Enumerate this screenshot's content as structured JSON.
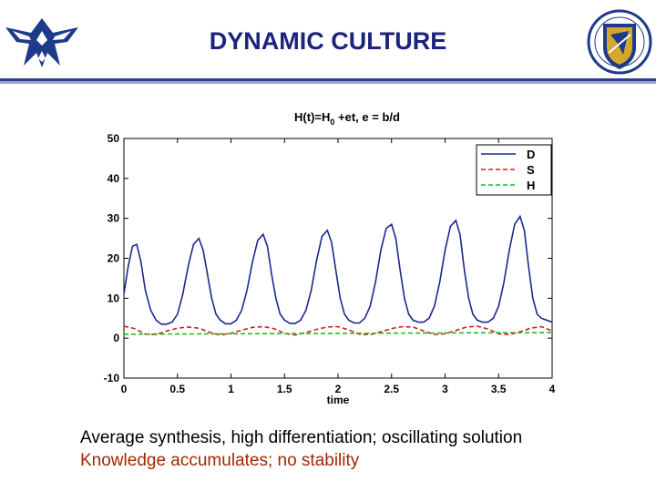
{
  "slide": {
    "title": "DYNAMIC CULTURE",
    "caption_line1": "Average synthesis, high differentiation; oscillating solution",
    "caption_line2": "Knowledge accumulates; no stability",
    "left_logo_icon": "air-force-wings-icon",
    "right_logo_icon": "afrl-shield-emblem-icon",
    "colors": {
      "title": "#1a237e",
      "rule": "#2f3e8f",
      "caption2": "#a02800"
    }
  },
  "chart_data": {
    "type": "line",
    "title": "H(t)=H0 +et, e = b/d",
    "title_main": "H(t)=H",
    "title_sub": "0",
    "title_rest": " +et, e = b/d",
    "xlabel": "time",
    "ylabel": "",
    "xlim": [
      0,
      4
    ],
    "ylim": [
      -10,
      50
    ],
    "xticks": [
      0,
      0.5,
      1,
      1.5,
      2,
      2.5,
      3,
      3.5,
      4
    ],
    "xtick_labels": [
      "0",
      "0.5",
      "1",
      "1.5",
      "2",
      "2.5",
      "3",
      "3.5",
      "4"
    ],
    "yticks": [
      -10,
      0,
      10,
      20,
      30,
      40,
      50
    ],
    "ytick_labels": [
      "-10",
      "0",
      "10",
      "20",
      "30",
      "40",
      "50"
    ],
    "grid": false,
    "legend": "top-right",
    "series": [
      {
        "name": "D",
        "color": "#1a2a8c",
        "style": "solid",
        "x": [
          0,
          0.04,
          0.08,
          0.12,
          0.16,
          0.2,
          0.25,
          0.3,
          0.35,
          0.4,
          0.45,
          0.5,
          0.55,
          0.6,
          0.65,
          0.7,
          0.74,
          0.78,
          0.82,
          0.86,
          0.9,
          0.95,
          1.0,
          1.05,
          1.1,
          1.15,
          1.2,
          1.25,
          1.3,
          1.34,
          1.38,
          1.42,
          1.46,
          1.5,
          1.55,
          1.6,
          1.65,
          1.7,
          1.75,
          1.8,
          1.85,
          1.9,
          1.94,
          1.98,
          2.02,
          2.06,
          2.1,
          2.15,
          2.2,
          2.25,
          2.3,
          2.35,
          2.4,
          2.45,
          2.5,
          2.54,
          2.58,
          2.62,
          2.66,
          2.7,
          2.75,
          2.8,
          2.85,
          2.9,
          2.95,
          3.0,
          3.05,
          3.1,
          3.14,
          3.18,
          3.22,
          3.26,
          3.3,
          3.35,
          3.4,
          3.45,
          3.5,
          3.55,
          3.6,
          3.65,
          3.7,
          3.74,
          3.78,
          3.82,
          3.86,
          3.9,
          3.95,
          4.0
        ],
        "y": [
          11,
          18,
          23,
          23.5,
          19,
          12,
          7,
          4.5,
          3.5,
          3.5,
          4,
          6,
          11,
          18,
          23.5,
          25,
          22,
          16,
          10,
          6,
          4.5,
          3.6,
          3.6,
          4.5,
          7,
          12,
          19,
          24.5,
          26,
          23,
          16,
          10,
          6,
          4.5,
          3.7,
          3.7,
          4.5,
          7,
          12,
          19.5,
          25.5,
          27,
          24,
          17,
          10,
          6,
          4.5,
          3.8,
          3.8,
          5,
          8,
          14,
          22,
          27.5,
          28.5,
          25,
          17,
          10,
          6,
          4.5,
          4,
          4,
          5,
          8,
          14,
          22,
          28,
          29.5,
          26,
          17,
          10,
          6,
          4.5,
          4,
          4,
          5,
          8,
          14,
          22,
          28.5,
          30.5,
          27,
          18,
          10,
          6,
          5,
          4.5,
          4
        ]
      },
      {
        "name": "S",
        "color": "#cc2222",
        "style": "dashed",
        "x": [
          0,
          0.1,
          0.2,
          0.3,
          0.4,
          0.5,
          0.6,
          0.7,
          0.8,
          0.9,
          1.0,
          1.1,
          1.2,
          1.3,
          1.4,
          1.5,
          1.6,
          1.7,
          1.8,
          1.9,
          2.0,
          2.1,
          2.2,
          2.3,
          2.4,
          2.5,
          2.6,
          2.7,
          2.8,
          2.9,
          3.0,
          3.1,
          3.2,
          3.3,
          3.4,
          3.5,
          3.6,
          3.7,
          3.8,
          3.9,
          4.0
        ],
        "y": [
          3,
          2.4,
          1,
          0.9,
          1.8,
          2.5,
          2.8,
          2.5,
          1.5,
          0.8,
          1.2,
          2,
          2.7,
          2.9,
          2.4,
          1.2,
          0.8,
          1.4,
          2.2,
          2.8,
          2.9,
          2.1,
          1,
          0.9,
          1.6,
          2.4,
          2.9,
          2.8,
          1.8,
          0.9,
          1.1,
          1.9,
          2.8,
          3,
          2.3,
          1.1,
          0.9,
          1.6,
          2.5,
          2.9,
          1.8
        ]
      },
      {
        "name": "H",
        "color": "#22bb22",
        "style": "dashed",
        "x": [
          0,
          4
        ],
        "y": [
          1,
          1.4
        ]
      }
    ]
  }
}
